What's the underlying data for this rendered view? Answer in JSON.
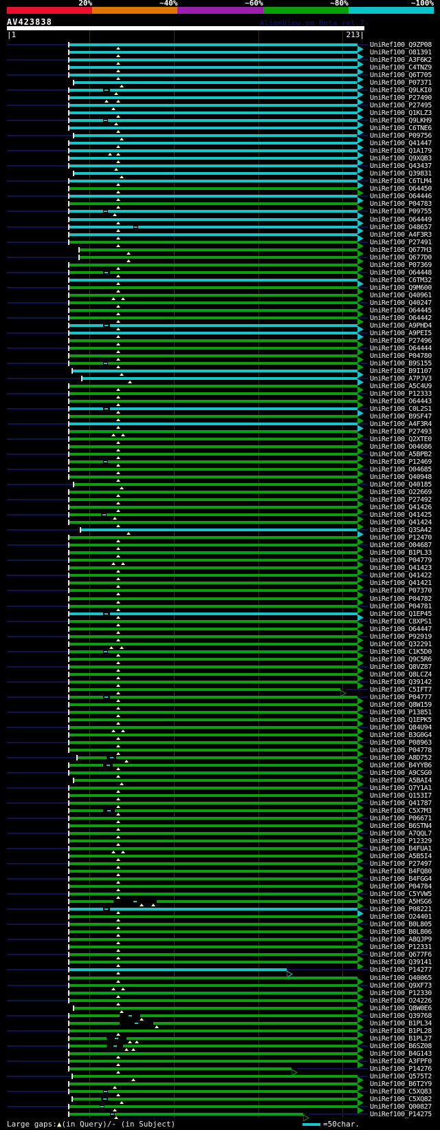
{
  "header": {
    "percent_labels": [
      "20%",
      "~40%",
      "~60%",
      "~80%",
      "~100%"
    ],
    "segment_colors": [
      "#e8112d",
      "#dd7500",
      "#9b1fae",
      "#0a9e0a",
      "#0cc3c7"
    ],
    "query_title": "AV423838",
    "watermark": "AlignView.pm Beta rel.7",
    "ruler_start_label": "|1",
    "ruler_end_label": "213|",
    "query_start": 1,
    "query_end": 213
  },
  "legend": {
    "large_gaps_label": "Large gaps:",
    "query_gap_symbol": "▲",
    "query_gap_text": "(in Query)/",
    "subject_gap_symbol": "-",
    "subject_gap_text": " (in Subject)",
    "scale_text": "=50char."
  },
  "colors": {
    "cyan": "#12c6ca",
    "green": "#0aa00a",
    "navy": "#11114f",
    "grid": "#2e2e18",
    "triangle": "#f6f6a6",
    "label": "#f2f2f2"
  },
  "gridline_positions": [
    50,
    100,
    150,
    200
  ],
  "hits": [
    {
      "label": "UniRef100_Q9ZP08",
      "color": "cyan"
    },
    {
      "label": "UniRef100_O81391",
      "color": "cyan"
    },
    {
      "label": "UniRef100_A3F6K2",
      "color": "cyan"
    },
    {
      "label": "UniRef100_C4TNZ9",
      "color": "cyan"
    },
    {
      "label": "UniRef100_Q6T705",
      "color": "cyan"
    },
    {
      "label": "UniRef100_P07371",
      "color": "cyan",
      "start": 41,
      "tris": [
        69
      ]
    },
    {
      "label": "UniRef100_Q9LKI0",
      "color": "cyan",
      "tris": [
        66
      ],
      "gap": [
        58,
        62
      ]
    },
    {
      "label": "UniRef100_P27490",
      "color": "cyan",
      "tris": [
        60,
        67
      ]
    },
    {
      "label": "UniRef100_P27495",
      "color": "cyan",
      "tris": [
        64
      ]
    },
    {
      "label": "UniRef100_Q1KLZ3",
      "color": "cyan"
    },
    {
      "label": "UniRef100_Q9LKH9",
      "color": "cyan",
      "tris": [
        66
      ],
      "gap": [
        58,
        61
      ]
    },
    {
      "label": "UniRef100_C6TNE6",
      "color": "cyan"
    },
    {
      "label": "UniRef100_P09756",
      "color": "cyan",
      "start": 41,
      "tris": [
        69
      ]
    },
    {
      "label": "UniRef100_Q41447",
      "color": "cyan"
    },
    {
      "label": "UniRef100_Q1A179",
      "color": "cyan",
      "tris": [
        62,
        67
      ]
    },
    {
      "label": "UniRef100_Q9XQB3",
      "color": "cyan"
    },
    {
      "label": "UniRef100_Q43437",
      "color": "cyan",
      "tris": [
        66
      ]
    },
    {
      "label": "UniRef100_Q39831",
      "color": "cyan",
      "start": 41,
      "tris": [
        69
      ]
    },
    {
      "label": "UniRef100_C6TLM4",
      "color": "cyan"
    },
    {
      "label": "UniRef100_O64450",
      "color": "green"
    },
    {
      "label": "UniRef100_O64446",
      "color": "cyan"
    },
    {
      "label": "UniRef100_P04783",
      "color": "green"
    },
    {
      "label": "UniRef100_P09755",
      "color": "cyan",
      "tris": [
        65
      ],
      "gap": [
        58,
        61
      ]
    },
    {
      "label": "UniRef100_O64449",
      "color": "cyan"
    },
    {
      "label": "UniRef100_O48657",
      "color": "cyan",
      "gap": [
        76,
        79
      ]
    },
    {
      "label": "UniRef100_A4F3R3",
      "color": "cyan"
    },
    {
      "label": "UniRef100_P27491",
      "color": "green"
    },
    {
      "label": "UniRef100_Q677H3",
      "color": "green",
      "start": 44,
      "tris": [
        73
      ]
    },
    {
      "label": "UniRef100_Q677D0",
      "color": "green",
      "start": 44,
      "tris": [
        73
      ]
    },
    {
      "label": "UniRef100_P07369",
      "color": "green"
    },
    {
      "label": "UniRef100_O64448",
      "color": "green",
      "gap": [
        58,
        62
      ]
    },
    {
      "label": "UniRef100_C6TM32",
      "color": "cyan"
    },
    {
      "label": "UniRef100_Q9M600",
      "color": "green"
    },
    {
      "label": "UniRef100_Q40961",
      "color": "green",
      "tris": [
        64,
        70
      ]
    },
    {
      "label": "UniRef100_Q40247",
      "color": "green"
    },
    {
      "label": "UniRef100_O64445",
      "color": "green"
    },
    {
      "label": "UniRef100_O64442",
      "color": "green"
    },
    {
      "label": "UniRef100_A9PHD4",
      "color": "cyan",
      "gap": [
        58,
        62
      ]
    },
    {
      "label": "UniRef100_A9PEI5",
      "color": "cyan"
    },
    {
      "label": "UniRef100_P27496",
      "color": "green"
    },
    {
      "label": "UniRef100_O64444",
      "color": "green"
    },
    {
      "label": "UniRef100_P04780",
      "color": "green"
    },
    {
      "label": "UniRef100_B9S155",
      "color": "green",
      "gap": [
        58,
        61
      ]
    },
    {
      "label": "UniRef100_B9I107",
      "color": "cyan",
      "start": 40,
      "tris": [
        69
      ]
    },
    {
      "label": "UniRef100_A7PJV3",
      "color": "cyan",
      "start": 46,
      "tris": [
        74
      ]
    },
    {
      "label": "UniRef100_A5C4U9",
      "color": "green"
    },
    {
      "label": "UniRef100_P12333",
      "color": "green"
    },
    {
      "label": "UniRef100_O64443",
      "color": "green"
    },
    {
      "label": "UniRef100_C0L2S1",
      "color": "cyan",
      "gap": [
        58,
        62
      ]
    },
    {
      "label": "UniRef100_B9SF47",
      "color": "green"
    },
    {
      "label": "UniRef100_A4F3R4",
      "color": "cyan"
    },
    {
      "label": "UniRef100_P27493",
      "color": "green",
      "tris": [
        64,
        70
      ]
    },
    {
      "label": "UniRef100_Q2XTE0",
      "color": "green"
    },
    {
      "label": "UniRef100_O04686",
      "color": "green"
    },
    {
      "label": "UniRef100_A5BPB2",
      "color": "green"
    },
    {
      "label": "UniRef100_P12469",
      "color": "green",
      "gap": [
        58,
        61
      ]
    },
    {
      "label": "UniRef100_O04685",
      "color": "green"
    },
    {
      "label": "UniRef100_Q40948",
      "color": "green"
    },
    {
      "label": "UniRef100_Q40185",
      "color": "green",
      "start": 41,
      "tris": [
        69
      ]
    },
    {
      "label": "UniRef100_O22669",
      "color": "green"
    },
    {
      "label": "UniRef100_P27492",
      "color": "green"
    },
    {
      "label": "UniRef100_Q41426",
      "color": "green"
    },
    {
      "label": "UniRef100_Q41425",
      "color": "green",
      "tris": [
        65
      ],
      "gap": [
        57,
        60
      ]
    },
    {
      "label": "UniRef100_Q41424",
      "color": "green"
    },
    {
      "label": "UniRef100_Q3SA42",
      "color": "cyan",
      "start": 45,
      "tris": [
        73
      ]
    },
    {
      "label": "UniRef100_P12470",
      "color": "green"
    },
    {
      "label": "UniRef100_O04687",
      "color": "green"
    },
    {
      "label": "UniRef100_B1PL33",
      "color": "green"
    },
    {
      "label": "UniRef100_P04779",
      "color": "green",
      "tris": [
        64,
        70
      ]
    },
    {
      "label": "UniRef100_Q41423",
      "color": "green"
    },
    {
      "label": "UniRef100_Q41422",
      "color": "green"
    },
    {
      "label": "UniRef100_Q41421",
      "color": "green"
    },
    {
      "label": "UniRef100_P07370",
      "color": "green"
    },
    {
      "label": "UniRef100_P04782",
      "color": "green"
    },
    {
      "label": "UniRef100_P04781",
      "color": "green"
    },
    {
      "label": "UniRef100_Q1EP45",
      "color": "cyan",
      "gap": [
        58,
        62
      ]
    },
    {
      "label": "UniRef100_C8XPS1",
      "color": "green"
    },
    {
      "label": "UniRef100_O64447",
      "color": "green"
    },
    {
      "label": "UniRef100_P92919",
      "color": "green"
    },
    {
      "label": "UniRef100_Q32291",
      "color": "green",
      "tris": [
        63,
        69
      ]
    },
    {
      "label": "UniRef100_C1K5D0",
      "color": "green",
      "gap": [
        58,
        61
      ]
    },
    {
      "label": "UniRef100_Q9C5R6",
      "color": "green"
    },
    {
      "label": "UniRef100_Q8VZ87",
      "color": "green"
    },
    {
      "label": "UniRef100_Q8LCZ4",
      "color": "green"
    },
    {
      "label": "UniRef100_Q39142",
      "color": "green"
    },
    {
      "label": "UniRef100_C5IFT7",
      "color": "green",
      "end": 202,
      "hollow": true
    },
    {
      "label": "UniRef100_P04777",
      "color": "green",
      "gap": [
        58,
        62
      ]
    },
    {
      "label": "UniRef100_Q8W159",
      "color": "green"
    },
    {
      "label": "UniRef100_P13851",
      "color": "green"
    },
    {
      "label": "UniRef100_Q1EPK5",
      "color": "green"
    },
    {
      "label": "UniRef100_Q84U94",
      "color": "green",
      "tris": [
        64,
        70
      ]
    },
    {
      "label": "UniRef100_B3G0G4",
      "color": "green"
    },
    {
      "label": "UniRef100_P08963",
      "color": "green"
    },
    {
      "label": "UniRef100_P04778",
      "color": "green"
    },
    {
      "label": "UniRef100_A8D752",
      "color": "green",
      "start": 43,
      "tris": [
        72
      ],
      "gap": [
        60,
        66
      ]
    },
    {
      "label": "UniRef100_B4YYB6",
      "color": "green",
      "gap": [
        58,
        64
      ]
    },
    {
      "label": "UniRef100_A9CSG0",
      "color": "green"
    },
    {
      "label": "UniRef100_A5BAI4",
      "color": "green",
      "start": 41,
      "tris": [
        69
      ]
    },
    {
      "label": "UniRef100_Q7Y1A1",
      "color": "green"
    },
    {
      "label": "UniRef100_Q153I7",
      "color": "green"
    },
    {
      "label": "UniRef100_Q41787",
      "color": "green"
    },
    {
      "label": "UniRef100_C5X7M3",
      "color": "green",
      "gap": [
        58,
        65
      ]
    },
    {
      "label": "UniRef100_P06671",
      "color": "green"
    },
    {
      "label": "UniRef100_B6STN4",
      "color": "green"
    },
    {
      "label": "UniRef100_A7QQL7",
      "color": "green"
    },
    {
      "label": "UniRef100_P12329",
      "color": "green"
    },
    {
      "label": "UniRef100_B4FUA1",
      "color": "green",
      "tris": [
        64,
        70
      ]
    },
    {
      "label": "UniRef100_A5B5I4",
      "color": "green"
    },
    {
      "label": "UniRef100_P27497",
      "color": "green"
    },
    {
      "label": "UniRef100_B4FQ80",
      "color": "green"
    },
    {
      "label": "UniRef100_B4FGG4",
      "color": "green"
    },
    {
      "label": "UniRef100_P04784",
      "color": "green"
    },
    {
      "label": "UniRef100_C5YVW5",
      "color": "green"
    },
    {
      "label": "UniRef100_A5HSG6",
      "color": "green",
      "tris": [
        81,
        88
      ],
      "gap": [
        64,
        90
      ]
    },
    {
      "label": "UniRef100_P08221",
      "color": "cyan",
      "gap": [
        58,
        62
      ]
    },
    {
      "label": "UniRef100_O24401",
      "color": "green"
    },
    {
      "label": "UniRef100_B0L805",
      "color": "green"
    },
    {
      "label": "UniRef100_B0L806",
      "color": "green"
    },
    {
      "label": "UniRef100_A8QJP9",
      "color": "green"
    },
    {
      "label": "UniRef100_P12331",
      "color": "green"
    },
    {
      "label": "UniRef100_Q677F6",
      "color": "green"
    },
    {
      "label": "UniRef100_Q39141",
      "color": "green"
    },
    {
      "label": "UniRef100_P14277",
      "color": "cyan",
      "end": 170,
      "hollow": true
    },
    {
      "label": "UniRef100_Q40065",
      "color": "green"
    },
    {
      "label": "UniRef100_Q9XF73",
      "color": "green",
      "tris": [
        64,
        70
      ]
    },
    {
      "label": "UniRef100_P12330",
      "color": "green"
    },
    {
      "label": "UniRef100_O24226",
      "color": "green"
    },
    {
      "label": "UniRef100_Q8W0E6",
      "color": "green",
      "start": 41,
      "tris": [
        69
      ]
    },
    {
      "label": "UniRef100_Q39768",
      "color": "green",
      "tris": [
        81
      ],
      "gap": [
        68,
        80
      ]
    },
    {
      "label": "UniRef100_B1PL34",
      "color": "green",
      "tris": [
        90
      ],
      "gap": [
        68,
        88
      ]
    },
    {
      "label": "UniRef100_B1PL28",
      "color": "green"
    },
    {
      "label": "UniRef100_B1PL27",
      "color": "green",
      "tris": [
        74,
        78
      ],
      "gap": [
        60,
        72
      ]
    },
    {
      "label": "UniRef100_B6SZ08",
      "color": "green",
      "tris": [
        72,
        76
      ],
      "gap": [
        60,
        70
      ]
    },
    {
      "label": "UniRef100_B4G143",
      "color": "green"
    },
    {
      "label": "UniRef100_A3FPF0",
      "color": "green"
    },
    {
      "label": "UniRef100_P14276",
      "color": "green",
      "end": 173,
      "hollow": true
    },
    {
      "label": "UniRef100_Q575T2",
      "color": "green",
      "start": 40,
      "tris": [
        76
      ]
    },
    {
      "label": "UniRef100_B6T2Y9",
      "color": "green",
      "tris": [
        65
      ]
    },
    {
      "label": "UniRef100_C5XQ83",
      "color": "green",
      "gap": [
        58,
        61
      ]
    },
    {
      "label": "UniRef100_C5XQ82",
      "color": "green",
      "start": 40,
      "tris": [
        69
      ],
      "gap": [
        57,
        61
      ]
    },
    {
      "label": "UniRef100_Q00827",
      "color": "green",
      "tris": [
        65
      ],
      "gap": [
        56,
        59
      ]
    },
    {
      "label": "UniRef100_P14275",
      "color": "green",
      "end": 180,
      "hollow": true,
      "tris": [
        66
      ],
      "gap": [
        62,
        65
      ]
    }
  ]
}
